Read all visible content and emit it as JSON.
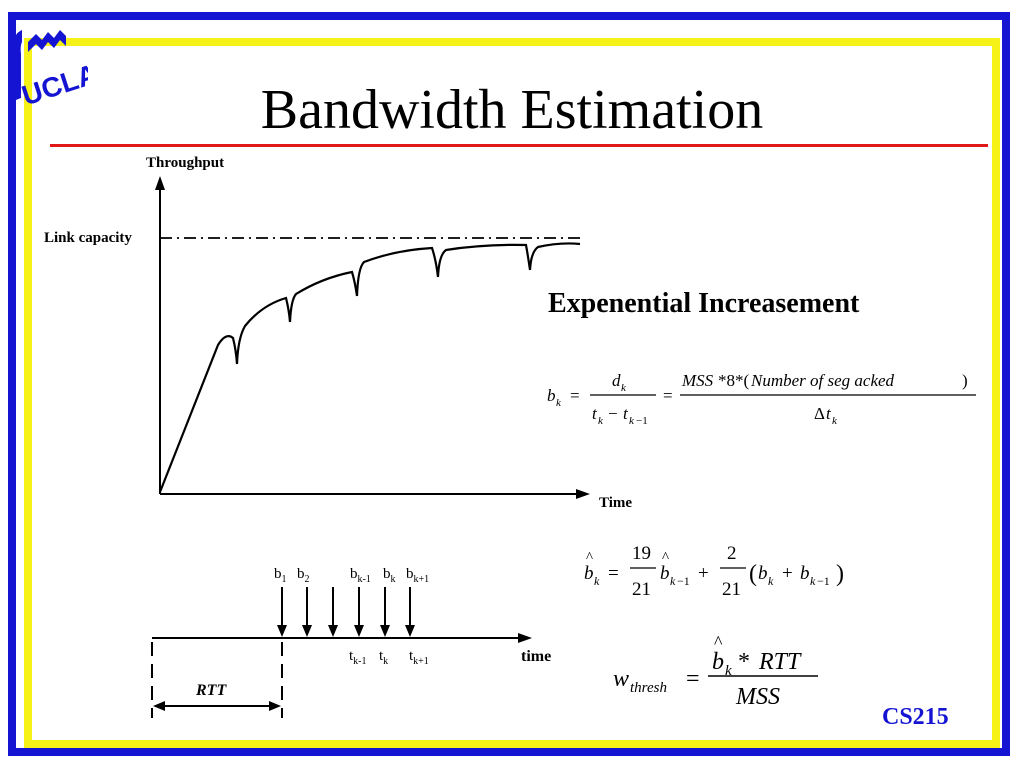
{
  "slide": {
    "title": "Bandwidth Estimation",
    "footer": "CS215",
    "logo_text": "UCLA",
    "colors": {
      "outer_frame": "#1414d2",
      "inner_frame": "#f6f218",
      "title_rule": "#e01818",
      "footer": "#1414d2"
    }
  },
  "throughput_plot": {
    "y_label": "Throughput",
    "x_label": "Time",
    "capacity_label": "Link capacity"
  },
  "heading": "Expenential Increasement",
  "rtt_diagram": {
    "arrows_top": [
      {
        "base": "b",
        "sub": "1"
      },
      {
        "base": "b",
        "sub": "2"
      },
      {
        "base": "b",
        "sub": "k-1"
      },
      {
        "base": "b",
        "sub": "k"
      },
      {
        "base": "b",
        "sub": "k+1"
      }
    ],
    "times_bottom": [
      {
        "base": "t",
        "sub": "k-1"
      },
      {
        "base": "t",
        "sub": "k"
      },
      {
        "base": "t",
        "sub": "k+1"
      }
    ],
    "axis_label": "time",
    "rtt_label": "RTT"
  }
}
